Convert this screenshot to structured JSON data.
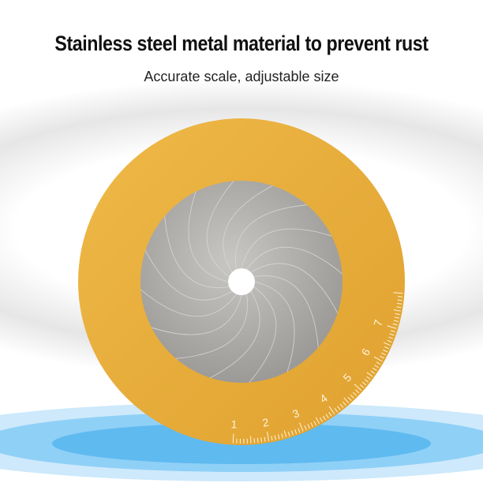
{
  "headline": "Stainless steel metal material to prevent rust",
  "subheadline": "Accurate scale, adjustable size",
  "scale_labels": [
    "1",
    "2",
    "3",
    "4",
    "5",
    "6",
    "7"
  ],
  "colors": {
    "ring": "#e8ac3a",
    "steel": "#a9a7a3",
    "water": "#5fbaf0"
  }
}
